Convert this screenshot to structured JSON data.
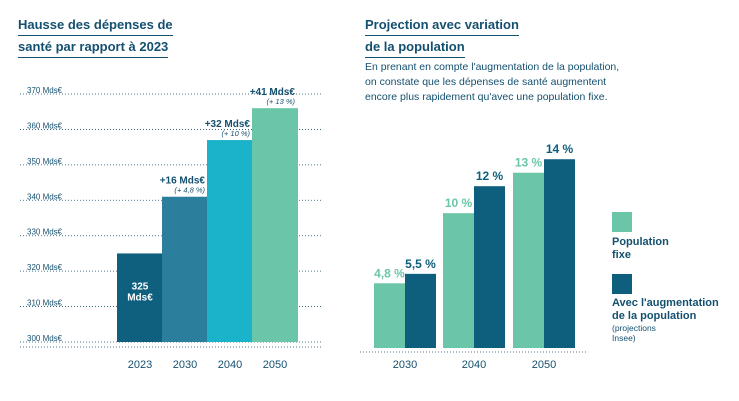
{
  "left_title": {
    "line1": "Hausse des dépenses de",
    "line2": "santé par rapport à 2023"
  },
  "right_title": {
    "line1": "Projection avec variation",
    "line2": "de la population"
  },
  "right_desc": {
    "line1": "En prenant en compte l'augmentation de la population,",
    "line2": "on constate que les dépenses de santé augmentent",
    "line3": "encore plus rapidement qu'avec une population fixe."
  },
  "legend": {
    "fixed": {
      "line1": "Population",
      "line2": "fixe"
    },
    "growth": {
      "line1": "Avec l'augmentation",
      "line2": "de la population",
      "note": "(projections Insee)"
    }
  },
  "colors": {
    "text": "#14506f",
    "bar_2023": "#0f5f7f",
    "bar_2030": "#2b7f9c",
    "bar_2040": "#1ab3c9",
    "bar_2050": "#6ac5a9",
    "fixed": "#6ac5a9",
    "growth": "#0d5f7d"
  },
  "chart_data": [
    {
      "type": "bar",
      "title": "Hausse des dépenses de santé par rapport à 2023",
      "categories": [
        "2023",
        "2030",
        "2040",
        "2050"
      ],
      "values": [
        325,
        341,
        357,
        366
      ],
      "ylim": [
        300,
        370
      ],
      "yticks": [
        300,
        310,
        320,
        330,
        340,
        350,
        360,
        370
      ],
      "ytick_labels": [
        "300 Mds€",
        "310 Mds€",
        "320 Mds€",
        "330 Mds€",
        "340 Mds€",
        "350 Mds€",
        "360 Mds€",
        "370 Mds€"
      ],
      "bar_labels": [
        {
          "main": "325",
          "sub": "Mds€",
          "position": "inside"
        },
        {
          "main": "+16 Mds€",
          "sub": "(+ 4,8 %)",
          "position": "above"
        },
        {
          "main": "+32 Mds€",
          "sub": "(+ 10 %)",
          "position": "above"
        },
        {
          "main": "+41 Mds€",
          "sub": "(+ 13 %)",
          "position": "above"
        }
      ],
      "grid": true
    },
    {
      "type": "bar",
      "title": "Projection avec variation de la population",
      "categories": [
        "2030",
        "2040",
        "2050"
      ],
      "series": [
        {
          "name": "Population fixe",
          "values": [
            4.8,
            10,
            13
          ],
          "labels": [
            "4,8 %",
            "10 %",
            "13 %"
          ]
        },
        {
          "name": "Avec l'augmentation de la population",
          "values": [
            5.5,
            12,
            14
          ],
          "labels": [
            "5,5 %",
            "12 %",
            "14 %"
          ]
        }
      ],
      "ylim": [
        0,
        15.5
      ],
      "legend": "right"
    }
  ]
}
